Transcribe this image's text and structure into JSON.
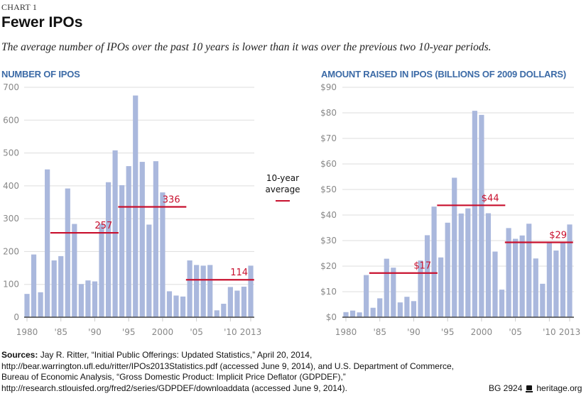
{
  "header": {
    "chart_label": "CHART 1",
    "title": "Fewer IPOs",
    "subtitle": "The average number of IPOs over the past 10 years is lower than it was over the previous two 10-year periods."
  },
  "legend": {
    "line1": "10-year",
    "line2": "average",
    "color": "#c8102e"
  },
  "colors": {
    "bar": "#aab8dd",
    "average_line": "#c8102e",
    "panel_title": "#3b6aa6",
    "gridline": "#dddddd",
    "axis": "#444444"
  },
  "chart_data": [
    {
      "type": "bar",
      "title": "NUMBER OF IPOS",
      "xlabel": "",
      "ylabel": "",
      "ylim": [
        0,
        700
      ],
      "yticks": [
        0,
        100,
        200,
        300,
        400,
        500,
        600,
        700
      ],
      "ytick_labels": [
        "0",
        "100",
        "200",
        "300",
        "400",
        "500",
        "600",
        "700"
      ],
      "grid": true,
      "x_tick_labels": [
        {
          "year": 1980,
          "label": "1980"
        },
        {
          "year": 1985,
          "label": "'85"
        },
        {
          "year": 1990,
          "label": "'90"
        },
        {
          "year": 1995,
          "label": "'95"
        },
        {
          "year": 2000,
          "label": "2000"
        },
        {
          "year": 2005,
          "label": "'05"
        },
        {
          "year": 2010,
          "label": "'10"
        },
        {
          "year": 2013,
          "label": "2013"
        }
      ],
      "categories": [
        1980,
        1981,
        1982,
        1983,
        1984,
        1985,
        1986,
        1987,
        1988,
        1989,
        1990,
        1991,
        1992,
        1993,
        1994,
        1995,
        1996,
        1997,
        1998,
        1999,
        2000,
        2001,
        2002,
        2003,
        2004,
        2005,
        2006,
        2007,
        2008,
        2009,
        2010,
        2011,
        2012,
        2013
      ],
      "values": [
        71,
        191,
        76,
        450,
        173,
        186,
        392,
        284,
        101,
        112,
        109,
        285,
        411,
        508,
        402,
        460,
        675,
        473,
        282,
        475,
        380,
        79,
        66,
        63,
        173,
        159,
        157,
        159,
        21,
        41,
        92,
        81,
        93,
        157
      ],
      "averages": [
        {
          "label": "257",
          "value": 257,
          "from": 1984,
          "to": 1993
        },
        {
          "label": "336",
          "value": 336,
          "from": 1994,
          "to": 2003
        },
        {
          "label": "114",
          "value": 114,
          "from": 2004,
          "to": 2013
        }
      ]
    },
    {
      "type": "bar",
      "title": "AMOUNT RAISED IN IPOS (BILLIONS OF 2009 DOLLARS)",
      "xlabel": "",
      "ylabel": "",
      "ylim": [
        0,
        90
      ],
      "yticks": [
        0,
        10,
        20,
        30,
        40,
        50,
        60,
        70,
        80,
        90
      ],
      "ytick_labels": [
        "$0",
        "$10",
        "$20",
        "$30",
        "$40",
        "$50",
        "$60",
        "$70",
        "$80",
        "$90"
      ],
      "grid": true,
      "x_tick_labels": [
        {
          "year": 1980,
          "label": "1980"
        },
        {
          "year": 1985,
          "label": "'85"
        },
        {
          "year": 1990,
          "label": "'90"
        },
        {
          "year": 1995,
          "label": "'95"
        },
        {
          "year": 2000,
          "label": "2000"
        },
        {
          "year": 2005,
          "label": "'05"
        },
        {
          "year": 2010,
          "label": "'10"
        },
        {
          "year": 2013,
          "label": "2013"
        }
      ],
      "categories": [
        1980,
        1981,
        1982,
        1983,
        1984,
        1985,
        1986,
        1987,
        1988,
        1989,
        1990,
        1991,
        1992,
        1993,
        1994,
        1995,
        1996,
        1997,
        1998,
        1999,
        2000,
        2001,
        2002,
        2003,
        2004,
        2005,
        2006,
        2007,
        2008,
        2009,
        2010,
        2011,
        2012,
        2013
      ],
      "values": [
        2.0,
        2.6,
        1.9,
        16.5,
        3.7,
        7.4,
        22.9,
        19.4,
        5.8,
        8.0,
        6.3,
        22.2,
        32.1,
        43.3,
        23.4,
        37.0,
        54.6,
        40.6,
        42.6,
        80.8,
        79.2,
        40.7,
        25.7,
        10.8,
        34.9,
        30.7,
        32.0,
        36.6,
        23.0,
        13.1,
        29.5,
        26.1,
        29.2,
        36.3
      ],
      "averages": [
        {
          "label": "$17",
          "value": 17.3,
          "from": 1984,
          "to": 1993
        },
        {
          "label": "$44",
          "value": 43.8,
          "from": 1994,
          "to": 2003
        },
        {
          "label": "$29",
          "value": 29.3,
          "from": 2004,
          "to": 2013
        }
      ]
    }
  ],
  "footer": {
    "sources_label": "Sources:",
    "sources_text": " Jay R. Ritter, “Initial Public Offerings: Updated Statistics,” April 20, 2014, http://bear.warrington.ufl.edu/ritter/IPOs2013Statistics.pdf (accessed June 9, 2014), and U.S. Department of Commerce, Bureau of Economic Analysis, “Gross Domestic Product: Implicit Price Deflator (GDPDEF),” http://research.stlouisfed.org/fred2/series/GDPDEF/downloaddata (accessed June 9, 2014).",
    "report_id": "BG 2924",
    "site": "heritage.org"
  }
}
